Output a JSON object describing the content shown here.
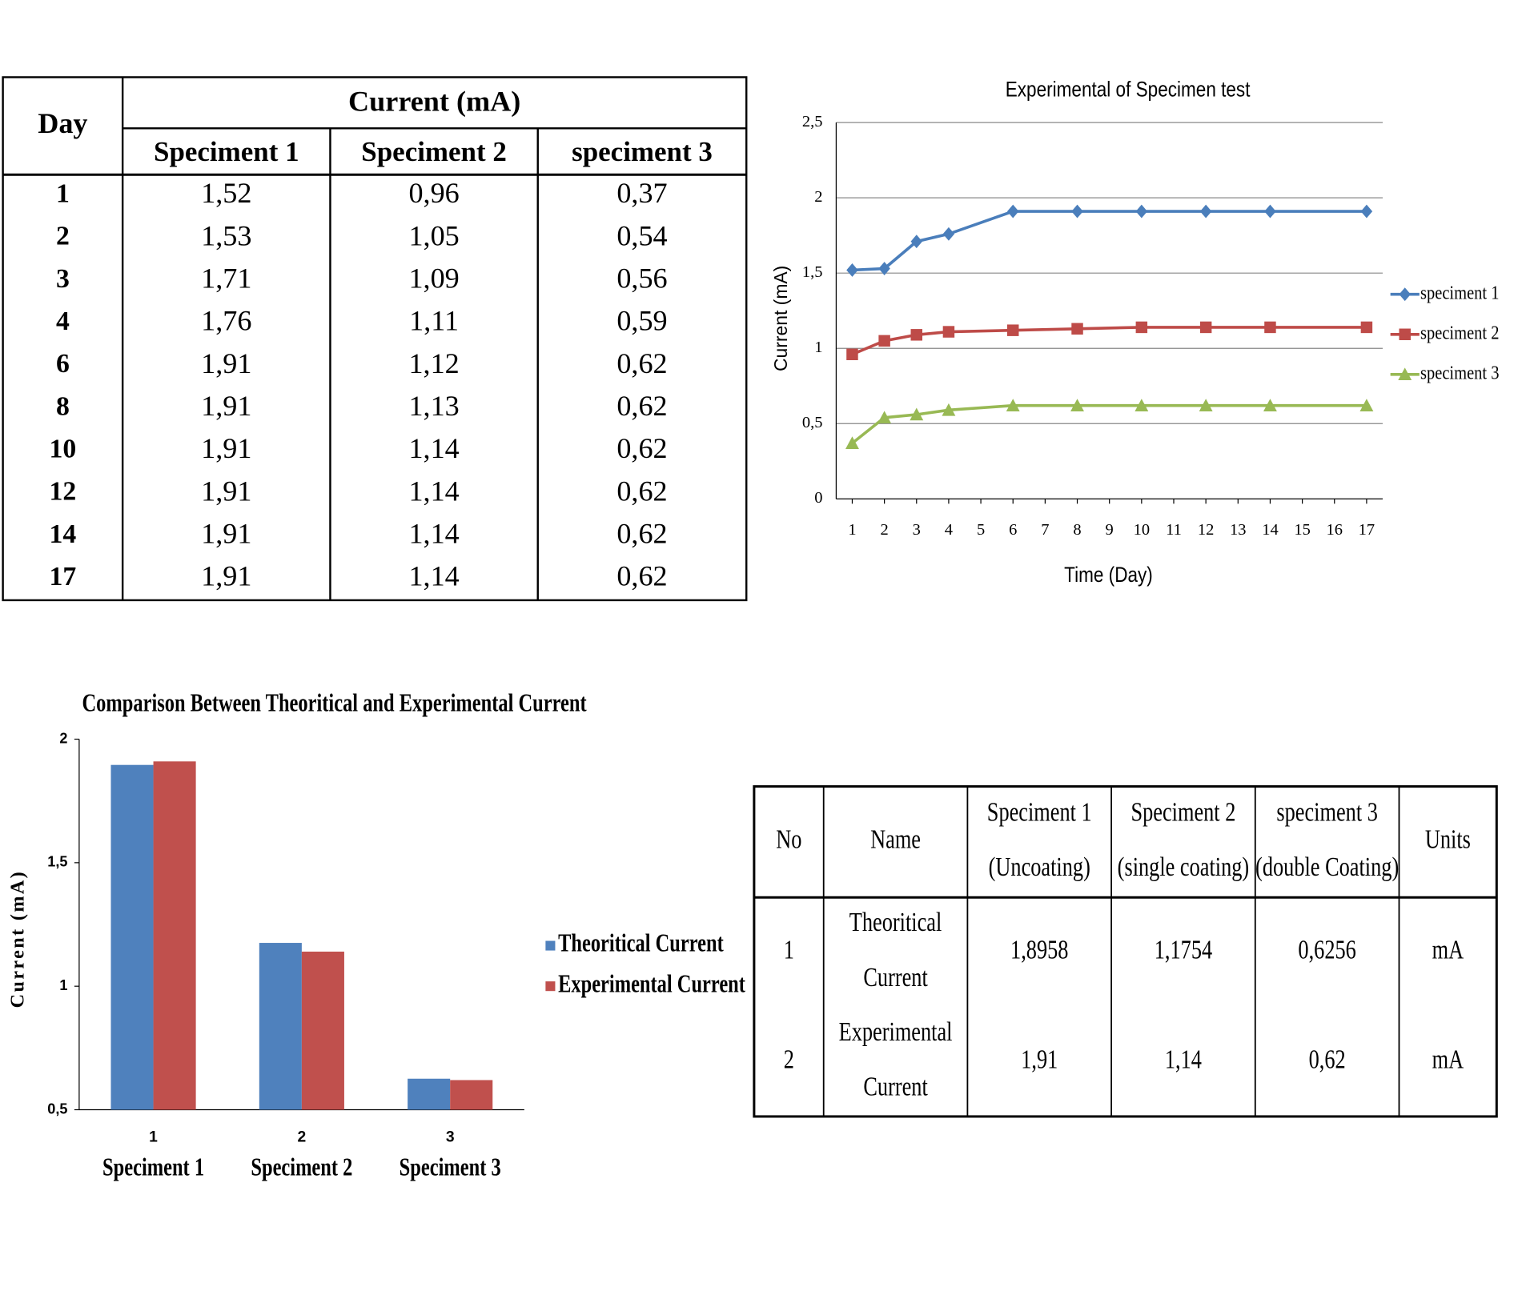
{
  "tables": [
    {
      "header": {
        "day": "Day",
        "current": "Current (mA)",
        "columns": [
          "Speciment 1",
          "Speciment  2",
          "speciment 3"
        ]
      },
      "rows": [
        [
          "1",
          "1,52",
          "0,96",
          "0,37"
        ],
        [
          "2",
          "1,53",
          "1,05",
          "0,54"
        ],
        [
          "3",
          "1,71",
          "1,09",
          "0,56"
        ],
        [
          "4",
          "1,76",
          "1,11",
          "0,59"
        ],
        [
          "6",
          "1,91",
          "1,12",
          "0,62"
        ],
        [
          "8",
          "1,91",
          "1,13",
          "0,62"
        ],
        [
          "10",
          "1,91",
          "1,14",
          "0,62"
        ],
        [
          "12",
          "1,91",
          "1,14",
          "0,62"
        ],
        [
          "14",
          "1,91",
          "1,14",
          "0,62"
        ],
        [
          "17",
          "1,91",
          "1,14",
          "0,62"
        ]
      ]
    },
    {
      "header": [
        [
          "No"
        ],
        [
          "Name"
        ],
        [
          "Speciment 1",
          "(Uncoating)"
        ],
        [
          "Speciment 2",
          "(single coating)"
        ],
        [
          "speciment 3",
          "(double Coating)"
        ],
        [
          "Units"
        ]
      ],
      "rows": [
        [
          [
            "1"
          ],
          [
            "Theoritical",
            "Current"
          ],
          [
            "1,8958"
          ],
          [
            "1,1754"
          ],
          [
            "0,6256"
          ],
          [
            "mA"
          ]
        ],
        [
          [
            "2"
          ],
          [
            "Experimental",
            "Current"
          ],
          [
            "1,91"
          ],
          [
            "1,14"
          ],
          [
            "0,62"
          ],
          [
            "mA"
          ]
        ]
      ]
    }
  ],
  "chart_data": [
    {
      "type": "line",
      "title": "Experimental of Specimen test",
      "x_label": "Time (Day)",
      "y_label": "Current (mA)",
      "x": [
        1,
        2,
        3,
        4,
        6,
        8,
        10,
        12,
        14,
        17
      ],
      "xlim": [
        0.5,
        17.5
      ],
      "xticks": [
        1,
        2,
        3,
        4,
        5,
        6,
        7,
        8,
        9,
        10,
        11,
        12,
        13,
        14,
        15,
        16,
        17
      ],
      "ylim": [
        0,
        2.5
      ],
      "yticks": [
        0,
        {
          "value": 0.5,
          "label": "0,5"
        },
        1,
        {
          "value": 1.5,
          "label": "1,5"
        },
        2,
        {
          "value": 2.5,
          "label": "2,5"
        }
      ],
      "grid": true,
      "legend": "right",
      "series": [
        {
          "name": "speciment 1",
          "color": "#4a7ebb",
          "marker": "diamond",
          "values": [
            1.52,
            1.53,
            1.71,
            1.76,
            1.91,
            1.91,
            1.91,
            1.91,
            1.91,
            1.91
          ]
        },
        {
          "name": "speciment 2",
          "color": "#be4b48",
          "marker": "square",
          "values": [
            0.96,
            1.05,
            1.09,
            1.11,
            1.12,
            1.13,
            1.14,
            1.14,
            1.14,
            1.14
          ]
        },
        {
          "name": "speciment 3",
          "color": "#98b954",
          "marker": "triangle",
          "values": [
            0.37,
            0.54,
            0.56,
            0.59,
            0.62,
            0.62,
            0.62,
            0.62,
            0.62,
            0.62
          ]
        }
      ]
    },
    {
      "type": "bar",
      "title": "Comparison Between Theoritical and Experimental Current",
      "y_label": "Current (mA)",
      "categories": [
        "1",
        "2",
        "3"
      ],
      "category_labels": [
        "Speciment 1",
        "Speciment 2",
        "Speciment 3"
      ],
      "ylim": [
        0.5,
        2
      ],
      "yticks": [
        {
          "value": 0.5,
          "label": "0,5"
        },
        1,
        {
          "value": 1.5,
          "label": "1,5"
        },
        2
      ],
      "legend": "right",
      "series": [
        {
          "name": "Theoritical Current",
          "color": "#4f81bd",
          "values": [
            1.8958,
            1.1754,
            0.6256
          ]
        },
        {
          "name": "Experimental Current",
          "color": "#c0504d",
          "values": [
            1.91,
            1.14,
            0.62
          ]
        }
      ]
    }
  ]
}
